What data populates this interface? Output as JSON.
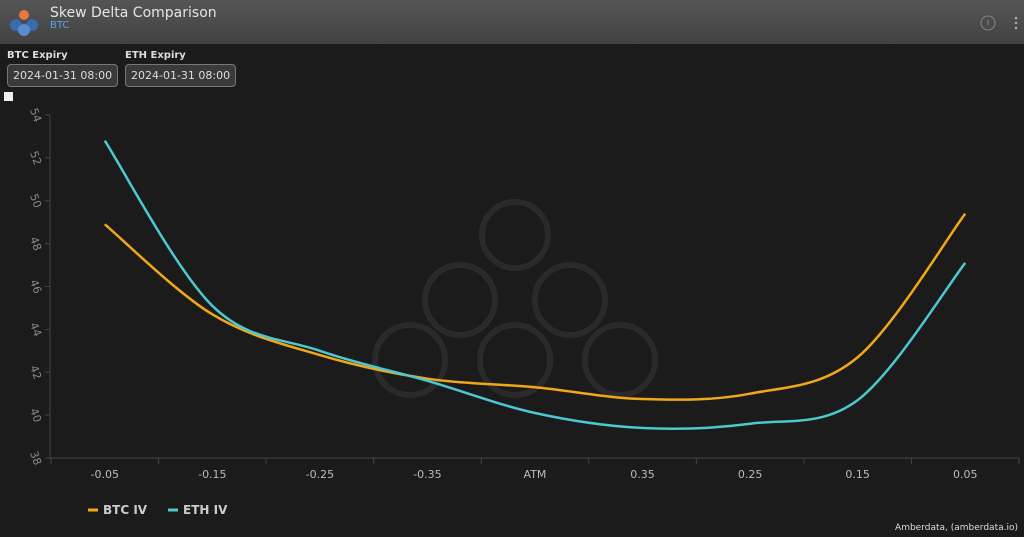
{
  "header": {
    "title": "Skew Delta Comparison",
    "subtitle": "BTC"
  },
  "controls": [
    {
      "label": "BTC Expiry",
      "value": "2024-01-31 08:00"
    },
    {
      "label": "ETH Expiry",
      "value": "2024-01-31 08:00"
    }
  ],
  "chart_data": {
    "type": "line",
    "categories": [
      "-0.05",
      "-0.15",
      "-0.25",
      "-0.35",
      "ATM",
      "0.35",
      "0.25",
      "0.15",
      "0.05"
    ],
    "series": [
      {
        "name": "BTC IV",
        "color": "#f0a818",
        "values": [
          48.9,
          44.7,
          42.8,
          41.7,
          41.3,
          40.75,
          41.0,
          42.7,
          49.4
        ]
      },
      {
        "name": "ETH IV",
        "color": "#4cc8d0",
        "values": [
          52.8,
          45.1,
          43.0,
          41.6,
          40.1,
          39.4,
          39.6,
          40.7,
          47.1
        ]
      }
    ],
    "ylim": [
      38,
      54
    ],
    "yticks": [
      38,
      40,
      42,
      44,
      46,
      48,
      50,
      52,
      54
    ],
    "grid": false,
    "legend": "bottom-left"
  },
  "footer": {
    "credit": "Amberdata, (amberdata.io)"
  }
}
